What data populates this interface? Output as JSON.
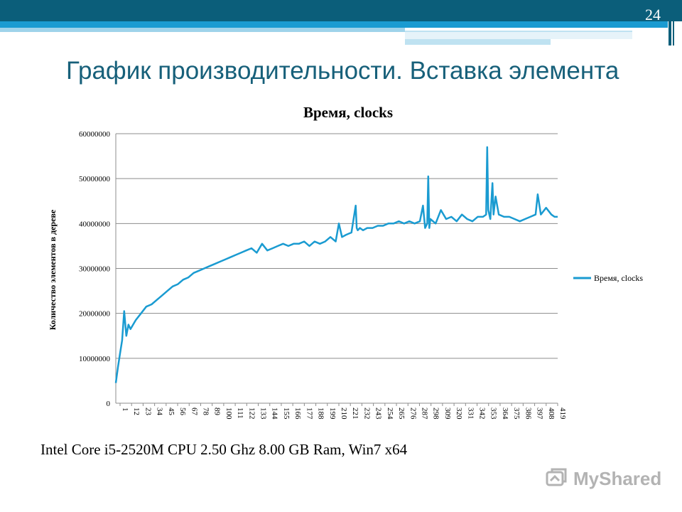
{
  "slide": {
    "number": "24",
    "title": "График производительности. Вставка элемента",
    "footer": "Intel Core i5-2520M CPU 2.50 Ghz  8.00 GB Ram, Win7 x64",
    "watermark": "MyShared",
    "colors": {
      "header": "#0b5e7a",
      "accent": "#1a9bd1",
      "title": "#17607a"
    }
  },
  "chart_data": {
    "type": "line",
    "title": "Время, clocks",
    "xlabel": "",
    "ylabel": "Количество элементов в дереве",
    "ylim": [
      0,
      60000000
    ],
    "yticks": [
      "0",
      "10000000",
      "20000000",
      "30000000",
      "40000000",
      "50000000",
      "60000000"
    ],
    "xticks": [
      "1",
      "12",
      "23",
      "34",
      "45",
      "56",
      "67",
      "78",
      "89",
      "100",
      "111",
      "122",
      "133",
      "144",
      "155",
      "166",
      "177",
      "188",
      "199",
      "210",
      "221",
      "232",
      "243",
      "254",
      "265",
      "276",
      "287",
      "298",
      "309",
      "320",
      "331",
      "342",
      "353",
      "364",
      "375",
      "386",
      "397",
      "408",
      "419"
    ],
    "grid": true,
    "legend": "right",
    "color": "#1a9bd1",
    "series": [
      {
        "name": "Время, clocks",
        "x": [
          1,
          3,
          5,
          7,
          9,
          11,
          13,
          15,
          20,
          25,
          30,
          35,
          40,
          45,
          50,
          55,
          60,
          65,
          70,
          75,
          80,
          85,
          90,
          95,
          100,
          105,
          110,
          115,
          120,
          125,
          130,
          135,
          140,
          145,
          150,
          155,
          160,
          165,
          170,
          175,
          180,
          185,
          190,
          195,
          200,
          205,
          210,
          213,
          216,
          220,
          225,
          229,
          230,
          231,
          233,
          236,
          240,
          245,
          250,
          255,
          260,
          265,
          270,
          275,
          280,
          285,
          290,
          293,
          295,
          297,
          298,
          299,
          300,
          305,
          310,
          315,
          320,
          325,
          330,
          335,
          340,
          345,
          350,
          353,
          354,
          355,
          357,
          359,
          360,
          362,
          365,
          370,
          375,
          380,
          385,
          390,
          395,
          400,
          402,
          405,
          410,
          415,
          418,
          421
        ],
        "values": [
          4500000,
          8000000,
          11000000,
          14000000,
          20500000,
          15000000,
          17500000,
          16500000,
          18500000,
          20000000,
          21500000,
          22000000,
          23000000,
          24000000,
          25000000,
          26000000,
          26500000,
          27500000,
          28000000,
          29000000,
          29500000,
          30000000,
          30500000,
          31000000,
          31500000,
          32000000,
          32500000,
          33000000,
          33500000,
          34000000,
          34500000,
          33500000,
          35500000,
          34000000,
          34500000,
          35000000,
          35500000,
          35000000,
          35500000,
          35500000,
          36000000,
          35000000,
          36000000,
          35500000,
          36000000,
          37000000,
          36000000,
          40000000,
          37000000,
          37500000,
          38000000,
          44000000,
          39000000,
          38500000,
          39000000,
          38500000,
          39000000,
          39000000,
          39500000,
          39500000,
          40000000,
          40000000,
          40500000,
          40000000,
          40500000,
          40000000,
          40500000,
          44000000,
          39000000,
          40000000,
          50500000,
          39000000,
          41000000,
          40000000,
          43000000,
          41000000,
          41500000,
          40500000,
          42000000,
          41000000,
          40500000,
          41500000,
          41500000,
          42000000,
          57000000,
          43000000,
          41000000,
          49000000,
          42000000,
          46000000,
          42000000,
          41500000,
          41500000,
          41000000,
          40500000,
          41000000,
          41500000,
          42000000,
          46500000,
          42000000,
          43500000,
          42000000,
          41500000,
          41500000
        ]
      }
    ]
  }
}
